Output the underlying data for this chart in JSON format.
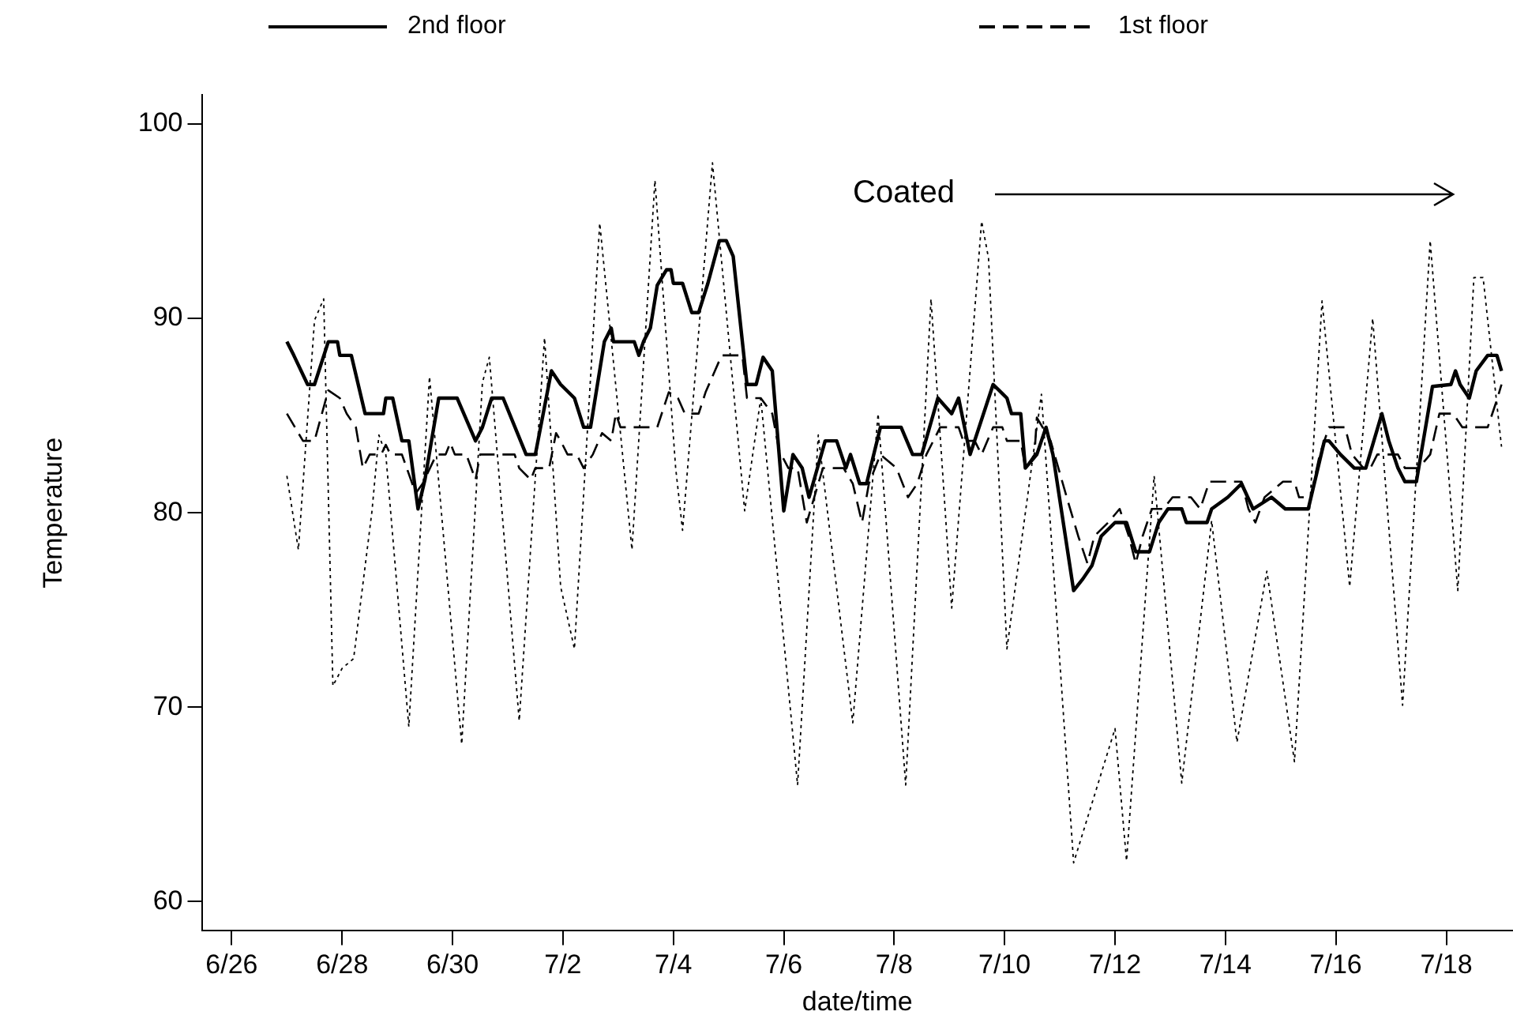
{
  "chart_data": {
    "type": "line",
    "xlabel": "date/time",
    "ylabel": "Temperature",
    "annotations": [
      "Coated"
    ],
    "legend": "top",
    "grid": false,
    "marker": "none",
    "xlim": [
      "--06-25T11:00",
      "--07-19T05:00"
    ],
    "xticks": [
      {
        "value": "--06-26",
        "label": "6/26"
      },
      {
        "value": "--06-28",
        "label": "6/28"
      },
      {
        "value": "--06-30",
        "label": "6/30"
      },
      {
        "value": "--07-02",
        "label": "7/2"
      },
      {
        "value": "--07-04",
        "label": "7/4"
      },
      {
        "value": "--07-06",
        "label": "7/6"
      },
      {
        "value": "--07-08",
        "label": "7/8"
      },
      {
        "value": "--07-10",
        "label": "7/10"
      },
      {
        "value": "--07-12",
        "label": "7/12"
      },
      {
        "value": "--07-14",
        "label": "7/14"
      },
      {
        "value": "--07-16",
        "label": "7/16"
      },
      {
        "value": "--07-18",
        "label": "7/18"
      }
    ],
    "ylim": [
      58.5,
      101.5
    ],
    "yticks": [
      60,
      70,
      80,
      90,
      100
    ],
    "series": [
      {
        "name": "2nd floor",
        "color": "#000000",
        "line_style": "solid",
        "x": [
          "--06-27T00:00",
          "--06-27T03:00",
          "--06-27T09:00",
          "--06-27T12:00",
          "--06-27T18:00",
          "--06-27T22:00",
          "--06-27T23:00",
          "--06-28T04:00",
          "--06-28T10:00",
          "--06-28T18:00",
          "--06-28T19:00",
          "--06-28T22:00",
          "--06-29T02:00",
          "--06-29T05:00",
          "--06-29T09:00",
          "--06-29T12:00",
          "--06-29T18:00",
          "--06-30T02:00",
          "--06-30T10:00",
          "--06-30T13:00",
          "--06-30T17:00",
          "--06-30T22:00",
          "--07-01T08:00",
          "--07-01T12:00",
          "--07-01T19:00",
          "--07-01T23:00",
          "--07-02T05:00",
          "--07-02T09:00",
          "--07-02T12:00",
          "--07-02T18:00",
          "--07-02T21:00",
          "--07-02T22:00",
          "--07-03T07:00",
          "--07-03T09:00",
          "--07-03T11:00",
          "--07-03T14:00",
          "--07-03T17:00",
          "--07-03T21:00",
          "--07-03T23:00",
          "--07-04T00:00",
          "--07-04T04:00",
          "--07-04T08:00",
          "--07-04T11:00",
          "--07-04T15:00",
          "--07-04T20:00",
          "--07-04T23:00",
          "--07-05T02:00",
          "--07-05T08:00",
          "--07-05T12:00",
          "--07-05T15:00",
          "--07-05T19:00",
          "--07-06T00:00",
          "--07-06T04:00",
          "--07-06T08:00",
          "--07-06T11:00",
          "--07-06T18:00",
          "--07-06T23:00",
          "--07-07T03:00",
          "--07-07T05:00",
          "--07-07T09:00",
          "--07-07T12:00",
          "--07-07T18:00",
          "--07-08T03:00",
          "--07-08T08:00",
          "--07-08T12:00",
          "--07-08T19:00",
          "--07-09T01:00",
          "--07-09T04:00",
          "--07-09T09:00",
          "--07-09T19:00",
          "--07-10T01:00",
          "--07-10T03:00",
          "--07-10T07:00",
          "--07-10T09:00",
          "--07-10T14:00",
          "--07-10T18:00",
          "--07-10T21:00",
          "--07-11T06:00",
          "--07-11T10:00",
          "--07-11T14:00",
          "--07-11T18:00",
          "--07-12T00:00",
          "--07-12T05:00",
          "--07-12T09:00",
          "--07-12T15:00",
          "--07-12T19:00",
          "--07-12T23:00",
          "--07-13T05:00",
          "--07-13T07:00",
          "--07-13T16:00",
          "--07-13T18:00",
          "--07-14T01:00",
          "--07-14T07:00",
          "--07-14T12:00",
          "--07-14T20:00",
          "--07-15T02:00",
          "--07-15T12:00",
          "--07-15T19:00",
          "--07-15T21:00",
          "--07-16T02:00",
          "--07-16T08:00",
          "--07-16T13:00",
          "--07-16T20:00",
          "--07-16T23:00",
          "--07-17T03:00",
          "--07-17T06:00",
          "--07-17T11:00",
          "--07-17T18:00",
          "--07-18T02:00",
          "--07-18T04:00",
          "--07-18T06:00",
          "--07-18T10:00",
          "--07-18T13:00",
          "--07-18T18:00",
          "--07-18T22:00",
          "--07-19T00:00"
        ],
        "values": [
          88.8,
          88.1,
          86.6,
          86.6,
          88.8,
          88.8,
          88.1,
          88.1,
          85.1,
          85.1,
          85.9,
          85.9,
          83.7,
          83.7,
          80.2,
          81.7,
          85.9,
          85.9,
          83.7,
          84.4,
          85.9,
          85.9,
          83.0,
          83.0,
          87.3,
          86.6,
          85.9,
          84.4,
          84.4,
          88.8,
          89.5,
          88.8,
          88.8,
          88.1,
          88.8,
          89.5,
          91.7,
          92.5,
          92.5,
          91.8,
          91.8,
          90.3,
          90.3,
          91.8,
          94.0,
          94.0,
          93.2,
          86.6,
          86.6,
          88.0,
          87.3,
          80.1,
          83.0,
          82.3,
          80.8,
          83.7,
          83.7,
          82.3,
          83.0,
          81.5,
          81.5,
          84.4,
          84.4,
          83.0,
          83.0,
          85.9,
          85.1,
          85.9,
          83.0,
          86.6,
          85.9,
          85.1,
          85.1,
          82.3,
          83.0,
          84.4,
          83.0,
          76.0,
          76.6,
          77.3,
          78.8,
          79.5,
          79.5,
          78.0,
          78.0,
          79.5,
          80.2,
          80.2,
          79.5,
          79.5,
          80.2,
          80.8,
          81.5,
          80.2,
          80.8,
          80.2,
          80.2,
          83.7,
          83.7,
          83.0,
          82.3,
          82.3,
          85.1,
          83.7,
          82.3,
          81.6,
          81.6,
          86.5,
          86.6,
          87.3,
          86.6,
          85.9,
          87.3,
          88.1,
          88.1,
          87.3
        ]
      },
      {
        "name": "1st floor",
        "color": "#000000",
        "line_style": "dashed",
        "x": [
          "--06-27T00:00",
          "--06-27T07:00",
          "--06-27T12:00",
          "--06-27T18:00",
          "--06-27T23:00",
          "--06-28T02:00",
          "--06-28T06:00",
          "--06-28T09:00",
          "--06-28T12:00",
          "--06-28T17:00",
          "--06-28T19:00",
          "--06-28T21:00",
          "--06-29T02:00",
          "--06-29T08:00",
          "--06-29T11:00",
          "--06-29T17:00",
          "--06-29T21:00",
          "--06-29T23:00",
          "--06-30T01:00",
          "--06-30T06:00",
          "--06-30T10:00",
          "--06-30T12:00",
          "--07-01T03:00",
          "--07-01T05:00",
          "--07-01T10:00",
          "--07-01T12:00",
          "--07-01T18:00",
          "--07-01T21:00",
          "--07-01T23:00",
          "--07-02T02:00",
          "--07-02T06:00",
          "--07-02T09:00",
          "--07-02T13:00",
          "--07-02T17:00",
          "--07-02T21:00",
          "--07-02T23:00",
          "--07-03T01:00",
          "--07-03T17:00",
          "--07-03T22:00",
          "--07-04T02:00",
          "--07-04T05:00",
          "--07-04T11:00",
          "--07-04T14:00",
          "--07-04T21:00",
          "--07-05T06:00",
          "--07-05T08:00",
          "--07-05T14:00",
          "--07-05T19:00",
          "--07-05T22:00",
          "--07-06T02:00",
          "--07-06T06:00",
          "--07-06T10:00",
          "--07-06T15:00",
          "--07-06T17:00",
          "--07-07T02:00",
          "--07-07T06:00",
          "--07-07T10:00",
          "--07-07T13:00",
          "--07-07T18:00",
          "--07-08T01:00",
          "--07-08T06:00",
          "--07-08T10:00",
          "--07-08T14:00",
          "--07-08T20:00",
          "--07-09T04:00",
          "--07-09T06:00",
          "--07-09T11:00",
          "--07-09T14:00",
          "--07-09T19:00",
          "--07-09T23:00",
          "--07-10T01:00",
          "--07-10T07:00",
          "--07-10T09:00",
          "--07-10T13:00",
          "--07-10T14:00",
          "--07-10T20:00",
          "--07-11T03:00",
          "--07-11T08:00",
          "--07-11T12:00",
          "--07-11T15:00",
          "--07-11T21:00",
          "--07-12T02:00",
          "--07-12T06:00",
          "--07-12T09:00",
          "--07-12T12:00",
          "--07-12T16:00",
          "--07-12T21:00",
          "--07-13T01:00",
          "--07-13T09:00",
          "--07-13T13:00",
          "--07-13T17:00",
          "--07-14T07:00",
          "--07-14T10:00",
          "--07-14T13:00",
          "--07-14T17:00",
          "--07-15T01:00",
          "--07-15T06:00",
          "--07-15T08:00",
          "--07-15T13:00",
          "--07-15T17:00",
          "--07-15T21:00",
          "--07-16T04:00",
          "--07-16T07:00",
          "--07-16T12:00",
          "--07-16T15:00",
          "--07-16T18:00",
          "--07-17T03:00",
          "--07-17T06:00",
          "--07-17T12:00",
          "--07-17T17:00",
          "--07-17T21:00",
          "--07-18T03:00",
          "--07-18T07:00",
          "--07-18T18:00",
          "--07-18T22:00",
          "--07-19T00:00"
        ],
        "values": [
          85.1,
          83.7,
          83.7,
          86.3,
          85.9,
          85.1,
          84.4,
          82.3,
          83.0,
          83.0,
          83.5,
          83.0,
          83.0,
          81.0,
          81.5,
          83.0,
          83.0,
          83.6,
          83.0,
          83.0,
          81.7,
          83.0,
          83.0,
          82.3,
          81.7,
          82.3,
          82.3,
          84.1,
          83.7,
          83.0,
          83.0,
          82.3,
          83.0,
          84.1,
          83.7,
          85.1,
          84.4,
          84.4,
          86.2,
          85.9,
          85.1,
          85.1,
          86.2,
          88.1,
          88.1,
          85.9,
          85.9,
          85.1,
          83.2,
          82.3,
          82.3,
          79.5,
          81.5,
          82.3,
          82.3,
          81.5,
          79.5,
          81.5,
          83.0,
          82.3,
          80.8,
          81.5,
          83.0,
          84.4,
          84.4,
          83.7,
          83.7,
          83.0,
          84.4,
          84.4,
          83.7,
          83.7,
          82.3,
          83.0,
          84.9,
          83.7,
          80.8,
          78.8,
          77.4,
          78.8,
          79.5,
          80.2,
          78.8,
          77.4,
          78.8,
          80.2,
          80.2,
          80.8,
          80.8,
          80.2,
          81.6,
          81.6,
          80.2,
          79.5,
          80.8,
          81.6,
          81.6,
          80.8,
          80.8,
          83.0,
          84.4,
          84.4,
          83.0,
          82.3,
          82.3,
          83.0,
          83.0,
          82.3,
          82.3,
          83.0,
          85.1,
          85.1,
          84.4,
          84.4,
          85.8,
          86.6
        ]
      },
      {
        "color": "#000000",
        "line_style": "dotted",
        "x": [
          "--06-27T00:00",
          "--06-27T05:00",
          "--06-27T12:00",
          "--06-27T16:00",
          "--06-27T20:00",
          "--06-28T00:00",
          "--06-28T05:00",
          "--06-28T13:00",
          "--06-28T16:00",
          "--06-28T19:00",
          "--06-29T05:00",
          "--06-29T14:00",
          "--06-30T04:00",
          "--06-30T13:00",
          "--06-30T16:00",
          "--07-01T05:00",
          "--07-01T16:00",
          "--07-01T23:00",
          "--07-02T05:00",
          "--07-02T16:00",
          "--07-03T06:00",
          "--07-03T16:00",
          "--07-04T01:00",
          "--07-04T04:00",
          "--07-04T17:00",
          "--07-05T07:00",
          "--07-05T14:00",
          "--07-06T06:00",
          "--07-06T15:00",
          "--07-07T06:00",
          "--07-07T17:00",
          "--07-08T05:00",
          "--07-08T16:00",
          "--07-09T01:00",
          "--07-09T14:00",
          "--07-09T17:00",
          "--07-10T01:00",
          "--07-10T16:00",
          "--07-11T06:00",
          "--07-12T00:00",
          "--07-12T05:00",
          "--07-12T17:00",
          "--07-13T05:00",
          "--07-13T18:00",
          "--07-14T05:00",
          "--07-14T18:00",
          "--07-15T06:00",
          "--07-15T18:00",
          "--07-16T06:00",
          "--07-16T16:00",
          "--07-17T05:00",
          "--07-17T17:00",
          "--07-18T05:00",
          "--07-18T12:00",
          "--07-18T16:00",
          "--07-19T00:00"
        ],
        "values": [
          81.9,
          78.1,
          89.9,
          91.0,
          71.1,
          72.0,
          72.5,
          80.1,
          84.0,
          83.0,
          69.0,
          87.0,
          68.1,
          86.7,
          88.0,
          69.3,
          89.0,
          76.2,
          73.0,
          94.9,
          78.1,
          97.1,
          82.3,
          79.1,
          98.0,
          80.1,
          85.9,
          66.0,
          84.0,
          69.2,
          85.1,
          66.0,
          91.0,
          75.1,
          95.0,
          93.1,
          73.0,
          86.1,
          62.0,
          68.9,
          62.1,
          81.9,
          66.1,
          79.6,
          68.2,
          77.0,
          67.2,
          90.9,
          76.2,
          90.0,
          70.1,
          94.0,
          76.0,
          92.1,
          92.1,
          83.4
        ]
      }
    ]
  }
}
